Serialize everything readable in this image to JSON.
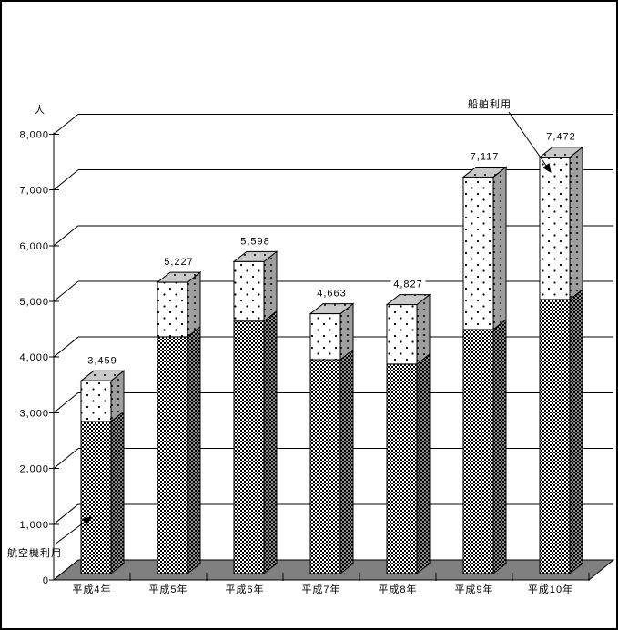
{
  "chart_data": {
    "type": "bar",
    "subtype": "3d-stacked-column",
    "title": "",
    "xlabel": "",
    "ylabel": "人",
    "ylim": [
      0,
      8000
    ],
    "ytick_step": 1000,
    "ytick_labels": [
      "0",
      "1,000",
      "2,000",
      "3,000",
      "4,000",
      "5,000",
      "6,000",
      "7,000",
      "8,000"
    ],
    "grid": true,
    "categories": [
      "平成4年",
      "平成5年",
      "平成6年",
      "平成7年",
      "平成8年",
      "平成9年",
      "平成10年"
    ],
    "series": [
      {
        "name": "航空機利用",
        "values": [
          2730,
          4250,
          4530,
          3840,
          3760,
          4380,
          4920
        ]
      },
      {
        "name": "船舶利用",
        "values": [
          729,
          977,
          1068,
          823,
          1067,
          2737,
          2552
        ]
      }
    ],
    "totals": [
      3459,
      5227,
      5598,
      4663,
      4827,
      7117,
      7472
    ],
    "total_labels": [
      "3,459",
      "5,227",
      "5,598",
      "4,663",
      "4,827",
      "7,117",
      "7,472"
    ],
    "legend_position": "callout-arrows"
  },
  "annotations": {
    "unit_label": "人",
    "ship_callout": "船舶利用",
    "airplane_callout": "航空機利用"
  },
  "colors": {
    "background": "#ffffff",
    "line": "#000000",
    "floor": "#808080",
    "air_side_fill": "#8f8f8f",
    "ship_front_fill": "#ffffff",
    "ship_side_fill": "#9e9e9e",
    "top_face_fill": "#c9c9c9"
  }
}
